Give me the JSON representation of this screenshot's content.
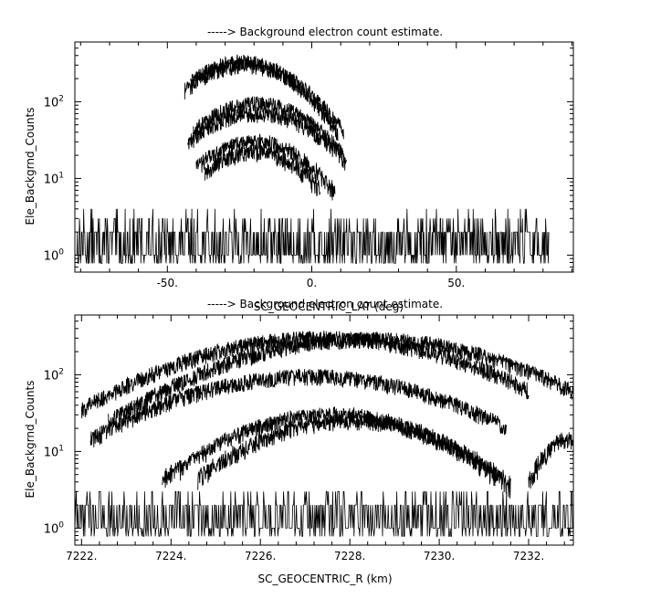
{
  "chart_data": [
    {
      "type": "line",
      "title": "-----> Background electron count estimate.",
      "xlabel": "SC_GEOCENTRIC_LAT (deg)",
      "ylabel": "Ele_Backgrnd_Counts",
      "xlim": [
        -82.0,
        90.5
      ],
      "ylim": [
        0.6,
        600
      ],
      "yscale": "log",
      "grid": false,
      "x_ticks": [
        {
          "v": -50,
          "label": "-50."
        },
        {
          "v": 0,
          "label": "0."
        },
        {
          "v": 50,
          "label": "50."
        }
      ],
      "y_ticks": [
        {
          "v": 1,
          "base": "10",
          "exp": "0"
        },
        {
          "v": 10,
          "base": "10",
          "exp": "1"
        },
        {
          "v": 100,
          "base": "10",
          "exp": "2"
        }
      ],
      "data_range": [
        -81.5,
        82.0
      ],
      "noise": {
        "values": [
          0.78,
          1.0,
          2.0,
          3.0,
          4.0
        ]
      },
      "series": [
        {
          "center": -24,
          "width": 16,
          "peak": 330,
          "x_range": [
            -42,
            9
          ]
        },
        {
          "center": -23,
          "width": 17,
          "peak": 300,
          "x_range": [
            -44,
            11
          ]
        },
        {
          "center": -19,
          "width": 17,
          "peak": 95,
          "x_range": [
            -41,
            11
          ]
        },
        {
          "center": -19,
          "width": 18,
          "peak": 70,
          "x_range": [
            -43,
            12
          ]
        },
        {
          "center": -20,
          "width": 16,
          "peak": 30,
          "x_range": [
            -40,
            8
          ]
        },
        {
          "center": -20,
          "width": 15,
          "peak": 22,
          "x_range": [
            -37,
            3
          ]
        }
      ]
    },
    {
      "type": "line",
      "title": "-----> Background electron count estimate.",
      "xlabel": "SC_GEOCENTRIC_R (km)",
      "ylabel": "Ele_Backgrnd_Counts",
      "xlim": [
        7221.85,
        7233.0
      ],
      "ylim": [
        0.6,
        600
      ],
      "yscale": "log",
      "grid": false,
      "x_ticks": [
        {
          "v": 7222,
          "label": "7222."
        },
        {
          "v": 7224,
          "label": "7224."
        },
        {
          "v": 7226,
          "label": "7226."
        },
        {
          "v": 7228,
          "label": "7228."
        },
        {
          "v": 7230,
          "label": "7230."
        },
        {
          "v": 7232,
          "label": "7232."
        }
      ],
      "y_ticks": [
        {
          "v": 1,
          "base": "10",
          "exp": "0"
        },
        {
          "v": 10,
          "base": "10",
          "exp": "1"
        },
        {
          "v": 100,
          "base": "10",
          "exp": "2"
        }
      ],
      "data_range": [
        7221.85,
        7233.0
      ],
      "noise": {
        "values": [
          0.78,
          1.0,
          2.0,
          3.0
        ]
      },
      "series": [
        {
          "center": 7227.4,
          "width": 2.6,
          "peak": 300,
          "x_range": [
            7222.0,
            7232.0
          ]
        },
        {
          "center": 7228.4,
          "width": 2.6,
          "peak": 290,
          "x_range": [
            7222.6,
            7233.0
          ]
        },
        {
          "center": 7227.1,
          "width": 2.5,
          "peak": 95,
          "x_range": [
            7222.2,
            7231.5
          ]
        },
        {
          "center": 7227.6,
          "width": 1.9,
          "peak": 30,
          "x_range": [
            7223.8,
            7231.4
          ]
        },
        {
          "center": 7228.0,
          "width": 1.8,
          "peak": 25,
          "x_range": [
            7224.6,
            7231.6
          ]
        },
        {
          "center": 7232.9,
          "width": 0.55,
          "peak": 14,
          "x_range": [
            7232.0,
            7233.0
          ]
        }
      ]
    }
  ]
}
